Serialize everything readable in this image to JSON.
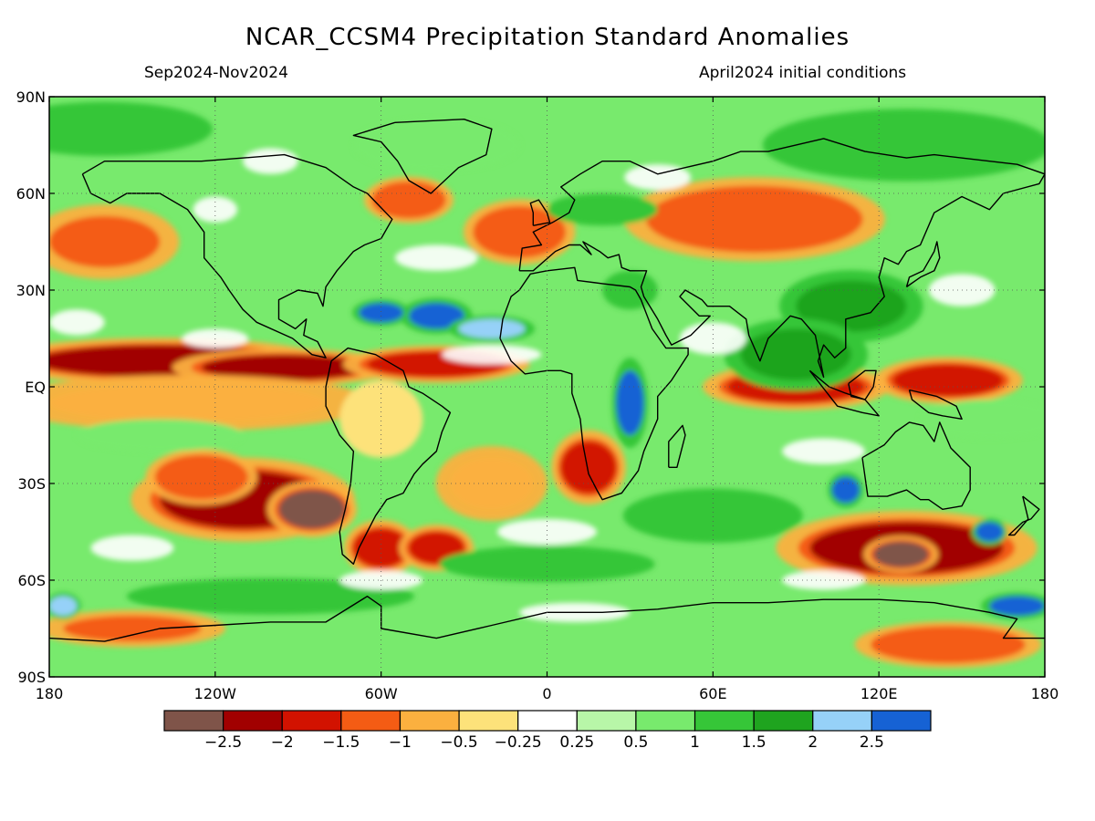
{
  "title": "NCAR_CCSM4 Precipitation Standard Anomalies",
  "season": "Sep2024-Nov2024",
  "init": "April2024 initial conditions",
  "map": {
    "lon_ticks": [
      {
        "lon": -180,
        "label": "180"
      },
      {
        "lon": -120,
        "label": "120W"
      },
      {
        "lon": -60,
        "label": "60W"
      },
      {
        "lon": 0,
        "label": "0"
      },
      {
        "lon": 60,
        "label": "60E"
      },
      {
        "lon": 120,
        "label": "120E"
      },
      {
        "lon": 180,
        "label": "180"
      }
    ],
    "lat_ticks": [
      {
        "lat": 90,
        "label": "90N"
      },
      {
        "lat": 60,
        "label": "60N"
      },
      {
        "lat": 30,
        "label": "30N"
      },
      {
        "lat": 0,
        "label": "EQ"
      },
      {
        "lat": -30,
        "label": "30S"
      },
      {
        "lat": -60,
        "label": "60S"
      },
      {
        "lat": -90,
        "label": "90S"
      }
    ]
  },
  "colorbar": {
    "colors": [
      "#7f5449",
      "#a10000",
      "#d21200",
      "#f45c14",
      "#fbb03f",
      "#fde27a",
      "#ffffff",
      "#b8f6a8",
      "#78ea6d",
      "#36c638",
      "#1fa41f",
      "#96d1f8",
      "#1662d4"
    ],
    "labels": [
      "−2.5",
      "−2",
      "−1.5",
      "−1",
      "−0.5",
      "−0.25",
      "0.25",
      "0.5",
      "1",
      "1.5",
      "2",
      "2.5"
    ]
  },
  "anomaly_fields": [
    {
      "lon": -140,
      "lat": 8,
      "rx": 45,
      "ry": 5,
      "v": -2.2
    },
    {
      "lon": -95,
      "lat": 6,
      "rx": 30,
      "ry": 4,
      "v": -2.2
    },
    {
      "lon": -40,
      "lat": 7,
      "rx": 25,
      "ry": 4,
      "v": -2.0
    },
    {
      "lon": -130,
      "lat": -5,
      "rx": 50,
      "ry": 6,
      "v": -0.6
    },
    {
      "lon": -110,
      "lat": -35,
      "rx": 30,
      "ry": 9,
      "v": -2.1
    },
    {
      "lon": -85,
      "lat": -38,
      "rx": 12,
      "ry": 6,
      "v": -2.6
    },
    {
      "lon": -125,
      "lat": -28,
      "rx": 15,
      "ry": 6,
      "v": -1.5
    },
    {
      "lon": -60,
      "lat": -50,
      "rx": 10,
      "ry": 6,
      "v": -1.8
    },
    {
      "lon": -40,
      "lat": -50,
      "rx": 10,
      "ry": 5,
      "v": -1.8
    },
    {
      "lon": 130,
      "lat": -50,
      "rx": 35,
      "ry": 8,
      "v": -2.2
    },
    {
      "lon": 128,
      "lat": -52,
      "rx": 10,
      "ry": 4,
      "v": -2.6
    },
    {
      "lon": 145,
      "lat": 2,
      "rx": 20,
      "ry": 5,
      "v": -2.0
    },
    {
      "lon": 90,
      "lat": 0,
      "rx": 25,
      "ry": 5,
      "v": -1.6
    },
    {
      "lon": 75,
      "lat": 52,
      "rx": 35,
      "ry": 9,
      "v": -1.5
    },
    {
      "lon": -160,
      "lat": 45,
      "rx": 20,
      "ry": 8,
      "v": -1.2
    },
    {
      "lon": -10,
      "lat": 48,
      "rx": 15,
      "ry": 7,
      "v": -1.5
    },
    {
      "lon": -50,
      "lat": 58,
      "rx": 12,
      "ry": 5,
      "v": -1.5
    },
    {
      "lon": 15,
      "lat": -25,
      "rx": 10,
      "ry": 8,
      "v": -1.8
    },
    {
      "lon": -20,
      "lat": -30,
      "rx": 15,
      "ry": 8,
      "v": -0.8
    },
    {
      "lon": -150,
      "lat": -75,
      "rx": 25,
      "ry": 4,
      "v": -1.2
    },
    {
      "lon": 145,
      "lat": -80,
      "rx": 25,
      "ry": 5,
      "v": -1.5
    },
    {
      "lon": -60,
      "lat": -10,
      "rx": 15,
      "ry": 12,
      "v": -0.4
    },
    {
      "lon": 110,
      "lat": 25,
      "rx": 20,
      "ry": 8,
      "v": 1.5
    },
    {
      "lon": 30,
      "lat": 30,
      "rx": 10,
      "ry": 6,
      "v": 1.0
    },
    {
      "lon": -40,
      "lat": 22,
      "rx": 10,
      "ry": 4,
      "v": 2.6
    },
    {
      "lon": -60,
      "lat": 23,
      "rx": 8,
      "ry": 3,
      "v": 2.6
    },
    {
      "lon": -20,
      "lat": 18,
      "rx": 12,
      "ry": 3,
      "v": 2.2
    },
    {
      "lon": 30,
      "lat": -5,
      "rx": 5,
      "ry": 10,
      "v": 2.6
    },
    {
      "lon": 108,
      "lat": -32,
      "rx": 5,
      "ry": 4,
      "v": 2.6
    },
    {
      "lon": 160,
      "lat": -45,
      "rx": 5,
      "ry": 3,
      "v": 2.6
    },
    {
      "lon": 90,
      "lat": 10,
      "rx": 20,
      "ry": 8,
      "v": 1.6
    },
    {
      "lon": 20,
      "lat": 55,
      "rx": 20,
      "ry": 5,
      "v": 1.0
    },
    {
      "lon": 0,
      "lat": -55,
      "rx": 30,
      "ry": 4,
      "v": 1.2
    },
    {
      "lon": 60,
      "lat": -40,
      "rx": 25,
      "ry": 6,
      "v": 1.2
    },
    {
      "lon": -100,
      "lat": -65,
      "rx": 40,
      "ry": 4,
      "v": 1.4
    },
    {
      "lon": 170,
      "lat": -68,
      "rx": 10,
      "ry": 3,
      "v": 2.6
    },
    {
      "lon": -175,
      "lat": -68,
      "rx": 5,
      "ry": 3,
      "v": 2.2
    },
    {
      "lon": 130,
      "lat": 75,
      "rx": 40,
      "ry": 8,
      "v": 1.2
    },
    {
      "lon": -40,
      "lat": 75,
      "rx": 30,
      "ry": 8,
      "v": 0.6
    },
    {
      "lon": -160,
      "lat": 80,
      "rx": 30,
      "ry": 6,
      "v": 1.2
    },
    {
      "lon": -140,
      "lat": -15,
      "rx": 30,
      "ry": 5,
      "v": 0.8
    },
    {
      "lon": 160,
      "lat": -10,
      "rx": 25,
      "ry": 6,
      "v": 0.8
    }
  ]
}
